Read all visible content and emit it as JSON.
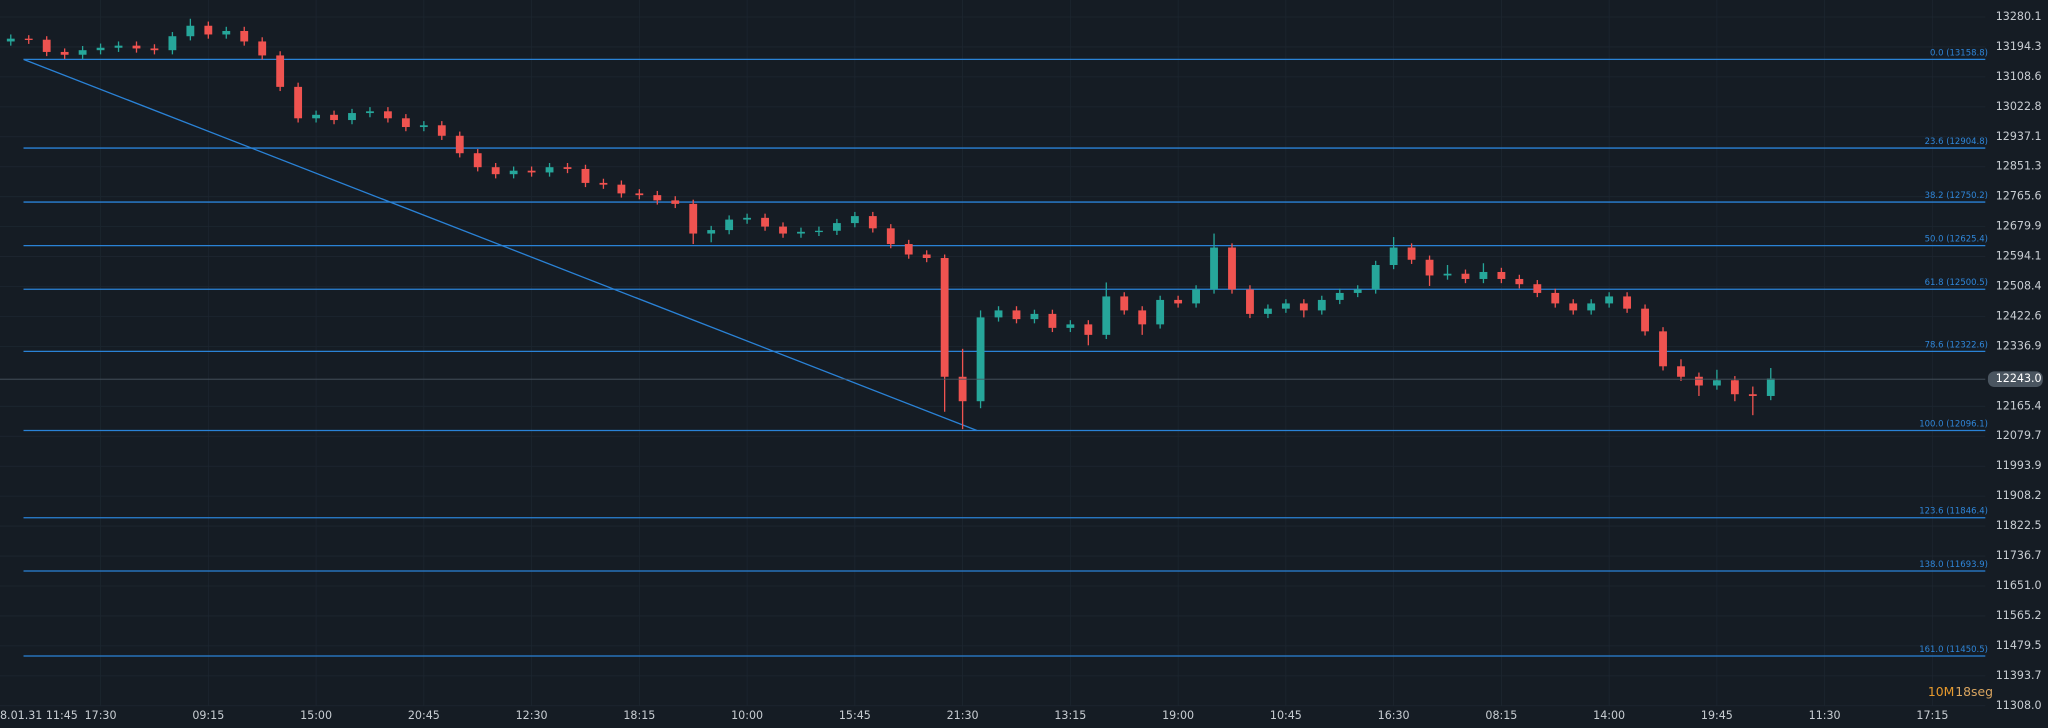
{
  "chart_data": {
    "type": "candlestick",
    "categories": [
      "8.01.31 11:45",
      null,
      null,
      null,
      null,
      null,
      "17:30",
      null,
      null,
      null,
      null,
      null,
      "09:15",
      null,
      null,
      null,
      null,
      null,
      "15:00",
      null,
      null,
      null,
      null,
      null,
      "20:45",
      null,
      null,
      null,
      null,
      null,
      "12:30",
      null,
      null,
      null,
      null,
      null,
      "18:15",
      null,
      null,
      null,
      null,
      null,
      "10:00",
      null,
      null,
      null,
      null,
      null,
      "15:45",
      null,
      null,
      null,
      null,
      null,
      "21:30",
      null,
      null,
      null,
      null,
      null,
      "13:15",
      null,
      null,
      null,
      null,
      null,
      "19:00",
      null,
      null,
      null,
      null,
      null,
      "10:45",
      null,
      null,
      null,
      null,
      null,
      "16:30",
      null,
      null,
      null,
      null,
      null,
      "08:15",
      null,
      null,
      null,
      null,
      null,
      "14:00",
      null,
      null,
      null,
      null,
      null,
      "19:45",
      null,
      null,
      null,
      null,
      null,
      "11:30",
      null,
      null,
      null,
      null,
      null,
      "17:15"
    ],
    "candles": [
      [
        13200,
        13222,
        13188,
        13210
      ],
      [
        13210,
        13230,
        13198,
        13218
      ],
      [
        13218,
        13228,
        13203,
        13215
      ],
      [
        13215,
        13225,
        13168,
        13180
      ],
      [
        13180,
        13190,
        13160,
        13172
      ],
      [
        13172,
        13197,
        13160,
        13185
      ],
      [
        13185,
        13204,
        13173,
        13192
      ],
      [
        13192,
        13210,
        13180,
        13198
      ],
      [
        13198,
        13210,
        13178,
        13190
      ],
      [
        13190,
        13202,
        13173,
        13185
      ],
      [
        13185,
        13237,
        13173,
        13225
      ],
      [
        13225,
        13275,
        13213,
        13255
      ],
      [
        13255,
        13267,
        13218,
        13230
      ],
      [
        13230,
        13252,
        13218,
        13240
      ],
      [
        13240,
        13252,
        13198,
        13210
      ],
      [
        13210,
        13222,
        13158,
        13170
      ],
      [
        13170,
        13182,
        13068,
        13080
      ],
      [
        13080,
        13092,
        12978,
        12990
      ],
      [
        12990,
        13012,
        12978,
        13000
      ],
      [
        13000,
        13012,
        12973,
        12985
      ],
      [
        12985,
        13017,
        12973,
        13005
      ],
      [
        13005,
        13022,
        12993,
        13010
      ],
      [
        13010,
        13022,
        12978,
        12990
      ],
      [
        12990,
        13002,
        12953,
        12965
      ],
      [
        12965,
        12982,
        12953,
        12970
      ],
      [
        12970,
        12982,
        12928,
        12940
      ],
      [
        12940,
        12952,
        12878,
        12890
      ],
      [
        12890,
        12902,
        12838,
        12850
      ],
      [
        12850,
        12862,
        12818,
        12830
      ],
      [
        12830,
        12852,
        12818,
        12840
      ],
      [
        12840,
        12852,
        12823,
        12835
      ],
      [
        12835,
        12862,
        12823,
        12850
      ],
      [
        12850,
        12862,
        12833,
        12845
      ],
      [
        12845,
        12857,
        12793,
        12805
      ],
      [
        12805,
        12817,
        12788,
        12800
      ],
      [
        12800,
        12812,
        12763,
        12775
      ],
      [
        12775,
        12787,
        12758,
        12770
      ],
      [
        12770,
        12782,
        12743,
        12755
      ],
      [
        12755,
        12767,
        12733,
        12745
      ],
      [
        12745,
        12757,
        12630,
        12660
      ],
      [
        12660,
        12682,
        12635,
        12670
      ],
      [
        12670,
        12712,
        12658,
        12700
      ],
      [
        12700,
        12717,
        12688,
        12705
      ],
      [
        12705,
        12717,
        12668,
        12680
      ],
      [
        12680,
        12692,
        12648,
        12660
      ],
      [
        12660,
        12677,
        12648,
        12665
      ],
      [
        12665,
        12680,
        12653,
        12668
      ],
      [
        12668,
        12702,
        12656,
        12690
      ],
      [
        12690,
        12722,
        12678,
        12710
      ],
      [
        12710,
        12722,
        12663,
        12675
      ],
      [
        12675,
        12687,
        12618,
        12630
      ],
      [
        12630,
        12642,
        12588,
        12600
      ],
      [
        12600,
        12612,
        12578,
        12590
      ],
      [
        12590,
        12600,
        12150,
        12250
      ],
      [
        12250,
        12330,
        12100,
        12180
      ],
      [
        12180,
        12440,
        12160,
        12420
      ],
      [
        12420,
        12452,
        12408,
        12440
      ],
      [
        12440,
        12452,
        12403,
        12415
      ],
      [
        12415,
        12442,
        12403,
        12430
      ],
      [
        12430,
        12442,
        12378,
        12390
      ],
      [
        12390,
        12412,
        12378,
        12400
      ],
      [
        12400,
        12412,
        12340,
        12370
      ],
      [
        12370,
        12520,
        12358,
        12480
      ],
      [
        12480,
        12492,
        12428,
        12440
      ],
      [
        12440,
        12452,
        12370,
        12400
      ],
      [
        12400,
        12482,
        12388,
        12470
      ],
      [
        12470,
        12482,
        12448,
        12460
      ],
      [
        12460,
        12512,
        12448,
        12500
      ],
      [
        12500,
        12660,
        12488,
        12620
      ],
      [
        12620,
        12632,
        12488,
        12500
      ],
      [
        12500,
        12512,
        12418,
        12430
      ],
      [
        12430,
        12457,
        12418,
        12445
      ],
      [
        12445,
        12472,
        12433,
        12460
      ],
      [
        12460,
        12472,
        12420,
        12440
      ],
      [
        12440,
        12482,
        12428,
        12470
      ],
      [
        12470,
        12502,
        12458,
        12490
      ],
      [
        12490,
        12512,
        12478,
        12500
      ],
      [
        12500,
        12582,
        12488,
        12570
      ],
      [
        12570,
        12650,
        12558,
        12620
      ],
      [
        12620,
        12632,
        12573,
        12585
      ],
      [
        12585,
        12597,
        12510,
        12540
      ],
      [
        12540,
        12570,
        12528,
        12545
      ],
      [
        12545,
        12557,
        12518,
        12530
      ],
      [
        12530,
        12575,
        12518,
        12550
      ],
      [
        12550,
        12562,
        12518,
        12530
      ],
      [
        12530,
        12542,
        12503,
        12515
      ],
      [
        12515,
        12527,
        12478,
        12490
      ],
      [
        12490,
        12502,
        12448,
        12460
      ],
      [
        12460,
        12472,
        12428,
        12440
      ],
      [
        12440,
        12472,
        12428,
        12460
      ],
      [
        12460,
        12492,
        12448,
        12480
      ],
      [
        12480,
        12492,
        12433,
        12445
      ],
      [
        12445,
        12457,
        12368,
        12380
      ],
      [
        12380,
        12392,
        12268,
        12280
      ],
      [
        12280,
        12300,
        12238,
        12250
      ],
      [
        12250,
        12262,
        12195,
        12225
      ],
      [
        12225,
        12270,
        12213,
        12240
      ],
      [
        12240,
        12252,
        12180,
        12200
      ],
      [
        12200,
        12222,
        12140,
        12195
      ],
      [
        12195,
        12275,
        12183,
        12245
      ],
      null,
      null,
      null,
      null,
      null,
      null,
      null,
      null,
      null
    ],
    "up_color": "#26a69a",
    "down_color": "#ef5350",
    "level_color": "#2a82d6",
    "ylim": [
      11308.0,
      13328.7
    ],
    "yticks": [
      13280.1,
      13194.3,
      13108.6,
      13022.8,
      12937.1,
      12851.3,
      12765.6,
      12679.9,
      12594.1,
      12508.4,
      12422.6,
      12336.9,
      12165.4,
      12079.7,
      11993.9,
      11908.2,
      11822.5,
      11736.7,
      {
        "value": 11651,
        "label": "11651.0"
      },
      11565.2,
      11479.5,
      11393.7,
      {
        "value": 11308,
        "label": "11308.0"
      }
    ],
    "grid": true,
    "current_price": {
      "value": 12243,
      "label": "12243.0"
    },
    "fib_levels": [
      {
        "label": "0.0 (13158.8)",
        "value": 13158.8
      },
      {
        "label": "23.6 (12904.8)",
        "value": 12904.8
      },
      {
        "label": "38.2 (12750.2)",
        "value": 12750.2
      },
      {
        "label": "50.0 (12625.4)",
        "value": 12625.4
      },
      {
        "label": "61.8 (12500.5)",
        "value": 12500.5
      },
      {
        "label": "78.6 (12322.6)",
        "value": 12322.6
      },
      {
        "label": "100.0 (12096.1)",
        "value": 12096.1
      },
      {
        "label": "123.6 (11846.4)",
        "value": 11846.4
      },
      {
        "label": "138.0 (11693.9)",
        "value": 11693.9
      },
      {
        "label": "161.0 (11450.5)",
        "value": 11450.5
      }
    ],
    "interval": "10M",
    "countdown": "18seg"
  }
}
